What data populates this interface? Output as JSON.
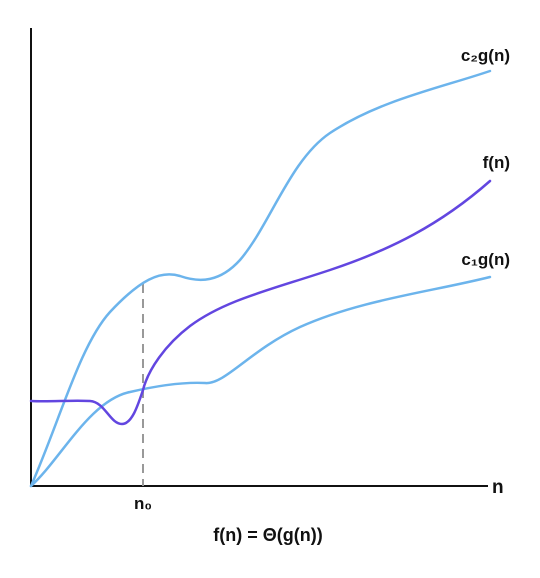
{
  "diagram": {
    "caption": "f(n) = Θ(g(n))",
    "x_axis_label": "n",
    "threshold_label": "n₀",
    "curves": [
      {
        "id": "upper",
        "label": "c₂g(n)",
        "color": "#6cb4ec"
      },
      {
        "id": "f",
        "label": "f(n)",
        "color": "#6246e0"
      },
      {
        "id": "lower",
        "label": "c₁g(n)",
        "color": "#6cb4ec"
      }
    ],
    "colors": {
      "axis": "#111111",
      "threshold_line": "#999999",
      "text": "#111111"
    }
  }
}
